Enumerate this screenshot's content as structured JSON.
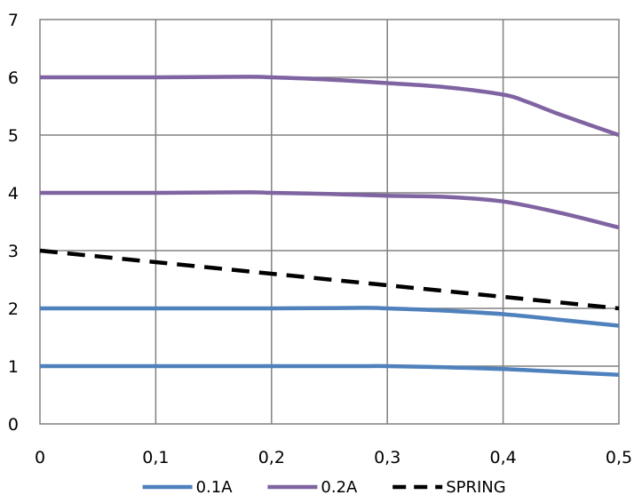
{
  "chart_data": {
    "type": "line",
    "title": "",
    "xlabel": "",
    "ylabel": "",
    "xlim": [
      0,
      0.5
    ],
    "ylim": [
      0,
      7
    ],
    "x_ticks": [
      "0",
      "0,1",
      "0,2",
      "0,3",
      "0,4",
      "0,5"
    ],
    "y_ticks": [
      "0",
      "1",
      "2",
      "3",
      "4",
      "5",
      "6",
      "7"
    ],
    "grid": true,
    "legend_position": "bottom",
    "series": [
      {
        "name": "0.1A",
        "color": "#4f81bd",
        "style": "solid",
        "curves": [
          {
            "x": [
              0,
              0.1,
              0.2,
              0.28,
              0.3,
              0.35,
              0.4,
              0.45,
              0.5
            ],
            "y": [
              1.0,
              1.0,
              1.0,
              1.0,
              1.0,
              0.98,
              0.95,
              0.9,
              0.85
            ]
          },
          {
            "x": [
              0,
              0.1,
              0.2,
              0.28,
              0.3,
              0.35,
              0.4,
              0.45,
              0.5
            ],
            "y": [
              2.0,
              2.0,
              2.0,
              2.01,
              2.0,
              1.96,
              1.9,
              1.8,
              1.7
            ]
          }
        ]
      },
      {
        "name": "0.2A",
        "color": "#8064a2",
        "style": "solid",
        "curves": [
          {
            "x": [
              0,
              0.1,
              0.18,
              0.2,
              0.25,
              0.3,
              0.35,
              0.4,
              0.45,
              0.5
            ],
            "y": [
              4.0,
              4.0,
              4.01,
              4.0,
              3.98,
              3.95,
              3.93,
              3.85,
              3.65,
              3.4
            ]
          },
          {
            "x": [
              0,
              0.1,
              0.18,
              0.2,
              0.25,
              0.3,
              0.35,
              0.4,
              0.42,
              0.45,
              0.5
            ],
            "y": [
              6.0,
              6.0,
              6.01,
              6.0,
              5.96,
              5.9,
              5.83,
              5.7,
              5.58,
              5.35,
              5.0
            ]
          }
        ]
      },
      {
        "name": "SPRING",
        "color": "#000000",
        "style": "dashed",
        "curves": [
          {
            "x": [
              0,
              0.1,
              0.2,
              0.3,
              0.4,
              0.5
            ],
            "y": [
              3.0,
              2.8,
              2.6,
              2.4,
              2.2,
              2.0
            ]
          }
        ]
      }
    ]
  }
}
